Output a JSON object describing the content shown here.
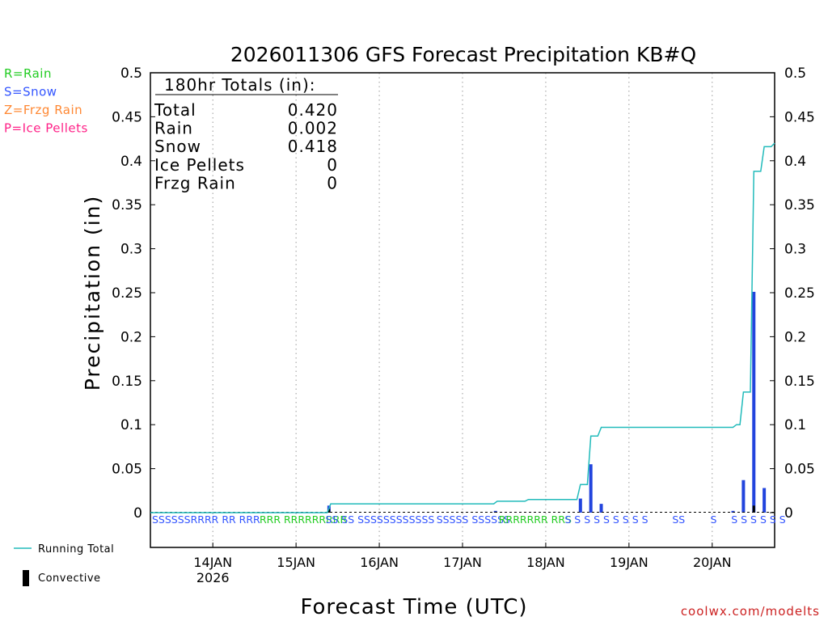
{
  "chart_data": {
    "type": "bar",
    "title": "2026011306 GFS Forecast Precipitation KB#Q",
    "xlabel": "Forecast Time (UTC)",
    "ylabel": "Precipitation (in)",
    "ylim": [
      0,
      0.5
    ],
    "yticks": [
      "0",
      "0.05",
      "0.1",
      "0.15",
      "0.2",
      "0.25",
      "0.3",
      "0.35",
      "0.4",
      "0.45",
      "0.5"
    ],
    "x_unit": "forecast hour",
    "xlim": [
      0,
      180
    ],
    "xticks": [
      {
        "hour": 18,
        "label": "14JAN",
        "sublabel": "2026"
      },
      {
        "hour": 42,
        "label": "15JAN",
        "sublabel": ""
      },
      {
        "hour": 66,
        "label": "16JAN",
        "sublabel": ""
      },
      {
        "hour": 90,
        "label": "17JAN",
        "sublabel": ""
      },
      {
        "hour": 114,
        "label": "18JAN",
        "sublabel": ""
      },
      {
        "hour": 138,
        "label": "19JAN",
        "sublabel": ""
      },
      {
        "hour": 162,
        "label": "20JAN",
        "sublabel": ""
      }
    ],
    "type_legend": [
      {
        "text": "R=Rain",
        "color": "#22cc22"
      },
      {
        "text": "S=Snow",
        "color": "#3355ff"
      },
      {
        "text": "Z=Frzg Rain",
        "color": "#ff8833"
      },
      {
        "text": "P=Ice Pellets",
        "color": "#ff2288"
      }
    ],
    "totals": {
      "header": "180hr Totals (in):",
      "rows": [
        {
          "label": "Total",
          "value": "0.420"
        },
        {
          "label": "Rain",
          "value": "0.002"
        },
        {
          "label": "Snow",
          "value": "0.418"
        },
        {
          "label": "Ice Pellets",
          "value": "0"
        },
        {
          "label": "Frzg Rain",
          "value": "0"
        }
      ]
    },
    "series": [
      {
        "name": "Running Total",
        "kind": "line",
        "color": "#22bbbb",
        "points": [
          [
            0,
            0
          ],
          [
            51,
            0
          ],
          [
            52,
            0.01
          ],
          [
            99,
            0.01
          ],
          [
            100,
            0.013
          ],
          [
            108,
            0.013
          ],
          [
            109,
            0.015
          ],
          [
            123,
            0.015
          ],
          [
            124,
            0.032
          ],
          [
            126,
            0.032
          ],
          [
            127,
            0.087
          ],
          [
            129,
            0.087
          ],
          [
            130,
            0.097
          ],
          [
            168,
            0.097
          ],
          [
            169,
            0.1
          ],
          [
            170,
            0.1
          ],
          [
            171,
            0.137
          ],
          [
            173,
            0.137
          ],
          [
            174,
            0.388
          ],
          [
            176,
            0.388
          ],
          [
            177,
            0.416
          ],
          [
            179,
            0.416
          ],
          [
            180,
            0.42
          ]
        ]
      },
      {
        "name": "precip",
        "kind": "bar",
        "color": "#2244dd",
        "points": [
          [
            51.5,
            0.008
          ],
          [
            99.5,
            0.002
          ],
          [
            124,
            0.016
          ],
          [
            127,
            0.055
          ],
          [
            130,
            0.01
          ],
          [
            168,
            0.002
          ],
          [
            171,
            0.037
          ],
          [
            174,
            0.251
          ],
          [
            177,
            0.028
          ]
        ]
      },
      {
        "name": "Convective",
        "kind": "bar",
        "color": "#000000",
        "points": [
          [
            51.5,
            0.004
          ],
          [
            99.5,
            0.001
          ],
          [
            174,
            0.008
          ]
        ]
      }
    ],
    "ptype_groups": [
      {
        "text": "SSSSSSRRRR RR RRR",
        "color": "#3355ff",
        "hour": 0
      },
      {
        "text": "RRR RRRRRRRRR",
        "color": "#22cc22",
        "hour": 31
      },
      {
        "text": "SS SS SSSSSSSSSSSS",
        "color": "#3355ff",
        "hour": 50
      },
      {
        "text": "SSSSS SSSSSS",
        "color": "#3355ff",
        "hour": 82
      },
      {
        "text": "RRRRRRR RRS",
        "color": "#22cc22",
        "hour": 100
      },
      {
        "text": "S S S S S S S S S",
        "color": "#3355ff",
        "hour": 119
      },
      {
        "text": "SS",
        "color": "#3355ff",
        "hour": 150
      },
      {
        "text": "S",
        "color": "#3355ff",
        "hour": 161
      },
      {
        "text": "S S S S S S",
        "color": "#3355ff",
        "hour": 167
      }
    ],
    "bottom_legend": [
      {
        "text": "Running Total",
        "color": "#22bbbb",
        "kind": "line"
      },
      {
        "text": "Convective",
        "color": "#000000",
        "kind": "bar"
      }
    ],
    "credit": "coolwx.com/modelts"
  }
}
